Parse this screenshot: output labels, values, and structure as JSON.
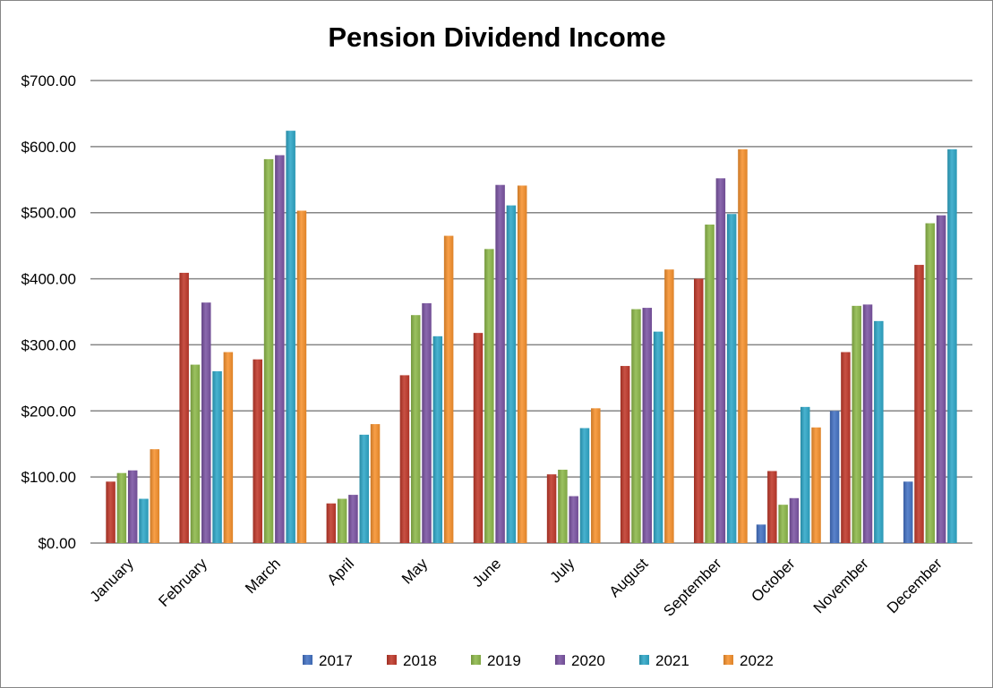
{
  "chart_data": {
    "type": "bar",
    "title": "Pension Dividend Income",
    "xlabel": "",
    "ylabel": "",
    "ylim": [
      0,
      700
    ],
    "yticks": [
      0,
      100,
      200,
      300,
      400,
      500,
      600,
      700
    ],
    "ytick_labels": [
      "$0.00",
      "$100.00",
      "$200.00",
      "$300.00",
      "$400.00",
      "$500.00",
      "$600.00",
      "$700.00"
    ],
    "grid": true,
    "legend_position": "bottom",
    "categories": [
      "January",
      "February",
      "March",
      "April",
      "May",
      "June",
      "July",
      "August",
      "September",
      "October",
      "November",
      "December"
    ],
    "series": [
      {
        "name": "2017",
        "color": "#4472C4",
        "values": [
          0,
          0,
          0,
          0,
          0,
          0,
          0,
          0,
          0,
          28,
          200,
          93
        ]
      },
      {
        "name": "2018",
        "color": "#C0392B",
        "values": [
          93,
          409,
          278,
          60,
          254,
          318,
          104,
          268,
          400,
          109,
          289,
          421
        ]
      },
      {
        "name": "2019",
        "color": "#8DB84A",
        "values": [
          106,
          270,
          581,
          67,
          345,
          445,
          111,
          354,
          482,
          58,
          359,
          484
        ]
      },
      {
        "name": "2020",
        "color": "#7B54A3",
        "values": [
          110,
          364,
          587,
          73,
          363,
          542,
          71,
          356,
          552,
          68,
          361,
          496
        ]
      },
      {
        "name": "2021",
        "color": "#2FA8C8",
        "values": [
          67,
          260,
          624,
          164,
          313,
          511,
          174,
          320,
          498,
          206,
          336,
          596
        ]
      },
      {
        "name": "2022",
        "color": "#F7922E",
        "values": [
          142,
          289,
          503,
          180,
          465,
          541,
          204,
          414,
          596,
          175,
          0,
          0
        ]
      }
    ]
  }
}
